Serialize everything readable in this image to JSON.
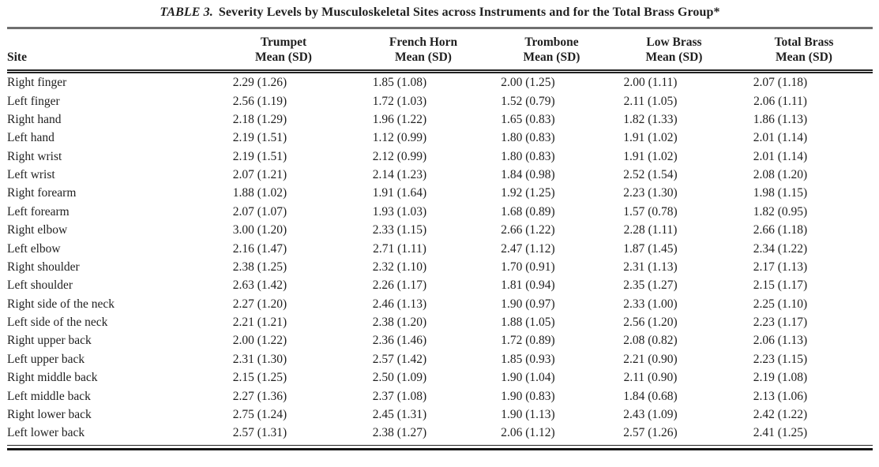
{
  "table": {
    "title": {
      "prefix": "TABLE 3.",
      "text": "Severity Levels by Musculoskeletal Sites across Instruments and for the Total Brass Group*"
    },
    "columns": {
      "site": "Site",
      "groups": [
        {
          "line1": "Trumpet",
          "line2": "Mean (SD)"
        },
        {
          "line1": "French Horn",
          "line2": "Mean (SD)"
        },
        {
          "line1": "Trombone",
          "line2": "Mean (SD)"
        },
        {
          "line1": "Low Brass",
          "line2": "Mean (SD)"
        },
        {
          "line1": "Total Brass",
          "line2": "Mean (SD)"
        }
      ]
    },
    "rows": [
      {
        "site": "Right finger",
        "values": [
          "2.29 (1.26)",
          "1.85 (1.08)",
          "2.00 (1.25)",
          "2.00 (1.11)",
          "2.07 (1.18)"
        ]
      },
      {
        "site": "Left finger",
        "values": [
          "2.56 (1.19)",
          "1.72 (1.03)",
          "1.52 (0.79)",
          "2.11 (1.05)",
          "2.06 (1.11)"
        ]
      },
      {
        "site": "Right hand",
        "values": [
          "2.18 (1.29)",
          "1.96 (1.22)",
          "1.65 (0.83)",
          "1.82 (1.33)",
          "1.86 (1.13)"
        ]
      },
      {
        "site": "Left hand",
        "values": [
          "2.19 (1.51)",
          "1.12 (0.99)",
          "1.80 (0.83)",
          "1.91 (1.02)",
          "2.01 (1.14)"
        ]
      },
      {
        "site": "Right wrist",
        "values": [
          "2.19 (1.51)",
          "2.12 (0.99)",
          "1.80 (0.83)",
          "1.91 (1.02)",
          "2.01 (1.14)"
        ]
      },
      {
        "site": "Left wrist",
        "values": [
          "2.07 (1.21)",
          "2.14 (1.23)",
          "1.84 (0.98)",
          "2.52 (1.54)",
          "2.08 (1.20)"
        ]
      },
      {
        "site": "Right forearm",
        "values": [
          "1.88 (1.02)",
          "1.91 (1.64)",
          "1.92 (1.25)",
          "2.23 (1.30)",
          "1.98 (1.15)"
        ]
      },
      {
        "site": "Left forearm",
        "values": [
          "2.07 (1.07)",
          "1.93 (1.03)",
          "1.68 (0.89)",
          "1.57 (0.78)",
          "1.82 (0.95)"
        ]
      },
      {
        "site": "Right elbow",
        "values": [
          "3.00 (1.20)",
          "2.33 (1.15)",
          "2.66 (1.22)",
          "2.28 (1.11)",
          "2.66 (1.18)"
        ]
      },
      {
        "site": "Left elbow",
        "values": [
          "2.16 (1.47)",
          "2.71 (1.11)",
          "2.47 (1.12)",
          "1.87 (1.45)",
          "2.34 (1.22)"
        ]
      },
      {
        "site": "Right shoulder",
        "values": [
          "2.38 (1.25)",
          "2.32 (1.10)",
          "1.70 (0.91)",
          "2.31 (1.13)",
          "2.17 (1.13)"
        ]
      },
      {
        "site": "Left shoulder",
        "values": [
          "2.63 (1.42)",
          "2.26 (1.17)",
          "1.81 (0.94)",
          "2.35 (1.27)",
          "2.15 (1.17)"
        ]
      },
      {
        "site": "Right side of the neck",
        "values": [
          "2.27 (1.20)",
          "2.46 (1.13)",
          "1.90 (0.97)",
          "2.33 (1.00)",
          "2.25 (1.10)"
        ]
      },
      {
        "site": "Left side of the neck",
        "values": [
          "2.21 (1.21)",
          "2.38 (1.20)",
          "1.88 (1.05)",
          "2.56 (1.20)",
          "2.23 (1.17)"
        ]
      },
      {
        "site": "Right upper back",
        "values": [
          "2.00 (1.22)",
          "2.36 (1.46)",
          "1.72 (0.89)",
          "2.08 (0.82)",
          "2.06 (1.13)"
        ]
      },
      {
        "site": "Left upper back",
        "values": [
          "2.31 (1.30)",
          "2.57 (1.42)",
          "1.85 (0.93)",
          "2.21 (0.90)",
          "2.23 (1.15)"
        ]
      },
      {
        "site": "Right middle back",
        "values": [
          "2.15 (1.25)",
          "2.50 (1.09)",
          "1.90 (1.04)",
          "2.11 (0.90)",
          "2.19 (1.08)"
        ]
      },
      {
        "site": "Left middle back",
        "values": [
          "2.27 (1.36)",
          "2.37 (1.08)",
          "1.90 (0.83)",
          "1.84 (0.68)",
          "2.13 (1.06)"
        ]
      },
      {
        "site": "Right lower back",
        "values": [
          "2.75 (1.24)",
          "2.45 (1.31)",
          "1.90 (1.13)",
          "2.43 (1.09)",
          "2.42 (1.22)"
        ]
      },
      {
        "site": "Left lower back",
        "values": [
          "2.57 (1.31)",
          "2.38 (1.27)",
          "2.06 (1.12)",
          "2.57 (1.26)",
          "2.41 (1.25)"
        ]
      }
    ]
  }
}
